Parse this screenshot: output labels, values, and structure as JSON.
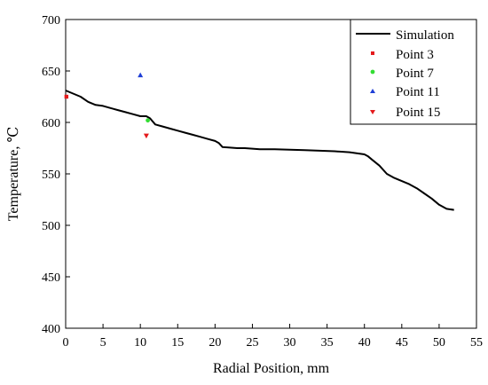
{
  "chart_data": {
    "type": "line",
    "title": "",
    "xlabel": "Radial Position, mm",
    "ylabel": "Temperature, ℃",
    "xlim": [
      0,
      55
    ],
    "ylim": [
      400,
      700
    ],
    "xticks": [
      0,
      5,
      10,
      15,
      20,
      25,
      30,
      35,
      40,
      45,
      50,
      55
    ],
    "yticks": [
      400,
      450,
      500,
      550,
      600,
      650,
      700
    ],
    "grid": false,
    "legend_position": "top-right",
    "series": [
      {
        "name": "Simulation",
        "kind": "line",
        "color": "#000000",
        "x": [
          0,
          1,
          2,
          3,
          4,
          5,
          6,
          7,
          8,
          9,
          10,
          10.8,
          11.3,
          12,
          13,
          14,
          15,
          16,
          17,
          18,
          19,
          20,
          20.5,
          21,
          22,
          23,
          24,
          25,
          26,
          27,
          28,
          30,
          32,
          34,
          36,
          38,
          40,
          40.5,
          41,
          42,
          43,
          44,
          45,
          46,
          47,
          48,
          49,
          50,
          51,
          52
        ],
        "y": [
          631,
          628,
          625,
          620,
          617,
          616,
          614,
          612,
          610,
          608,
          606,
          606,
          604,
          598,
          596,
          594,
          592,
          590,
          588,
          586,
          584,
          582,
          580,
          576,
          575.5,
          575,
          575,
          574.5,
          574,
          574,
          574,
          573.5,
          573,
          572.5,
          572,
          571,
          569,
          567,
          564,
          558,
          550,
          546,
          543,
          540,
          536,
          531,
          526,
          520,
          516,
          515
        ]
      },
      {
        "name": "Point 3",
        "kind": "marker",
        "shape": "square",
        "color": "#e41a1c",
        "x": [
          0.1
        ],
        "y": [
          625
        ]
      },
      {
        "name": "Point 7",
        "kind": "marker",
        "shape": "circle",
        "color": "#33dd33",
        "x": [
          11
        ],
        "y": [
          602
        ]
      },
      {
        "name": "Point 11",
        "kind": "marker",
        "shape": "triangle-up",
        "color": "#1f3fd6",
        "x": [
          10
        ],
        "y": [
          646
        ]
      },
      {
        "name": "Point 15",
        "kind": "marker",
        "shape": "triangle-down",
        "color": "#e41a1c",
        "x": [
          10.8
        ],
        "y": [
          587
        ]
      }
    ]
  }
}
